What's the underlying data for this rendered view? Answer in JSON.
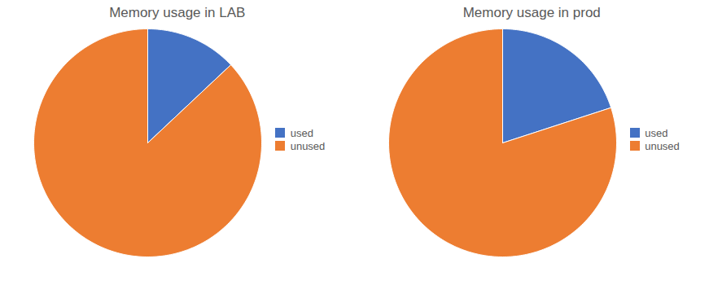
{
  "chart_data": [
    {
      "type": "pie",
      "title": "Memory usage in LAB",
      "categories": [
        "used",
        "unused"
      ],
      "values": [
        13,
        87
      ],
      "colors": [
        "#4472C4",
        "#ED7D31"
      ],
      "legend": "right"
    },
    {
      "type": "pie",
      "title": "Memory usage in prod",
      "categories": [
        "used",
        "unused"
      ],
      "values": [
        20,
        80
      ],
      "colors": [
        "#4472C4",
        "#ED7D31"
      ],
      "legend": "right"
    }
  ]
}
